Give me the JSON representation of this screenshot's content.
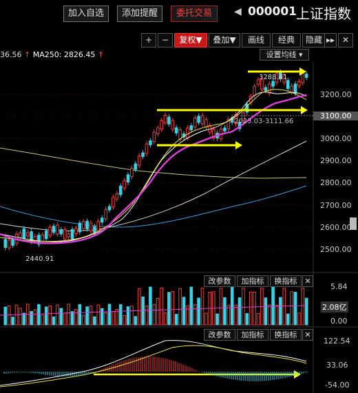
{
  "header": {
    "add_watchlist": "加入自选",
    "add_alert": "添加提醒",
    "trade": "委托交易",
    "code": "000001",
    "name": "上证指数"
  },
  "toolbar": {
    "plus": "+",
    "minus": "−",
    "adjust": "复权▼",
    "overlay": "叠加▼",
    "draw": "画线",
    "classic": "经典",
    "hide": "隐藏",
    "more": "▸▸",
    "close": "✕"
  },
  "ma_line": {
    "prefix": "36.56",
    "ma250_label": "MA250: 2826.45",
    "arrow1": "↑",
    "arrow2": "↑"
  },
  "set_ma": "设置均线",
  "main_axis": {
    "ticks": [
      "3200.00",
      "3100.00",
      "3000.00",
      "2900.00",
      "2800.00",
      "2700.00",
      "2600.00",
      "2500.00"
    ],
    "current_label": "3100.00"
  },
  "annotations": {
    "high": "3288.41",
    "low": "2440.91",
    "mark": "2023.03-3111.66"
  },
  "volume_panel": {
    "buttons": [
      "改参数",
      "加指标",
      "换指标"
    ],
    "close": "✕",
    "axis_top": "5.84",
    "axis_mid": "2.08亿",
    "axis_bottom": "0.00"
  },
  "macd_panel": {
    "buttons": [
      "改参数",
      "加指标",
      "换指标"
    ],
    "close": "✕",
    "axis_top": "122.54",
    "axis_mid": "33.06",
    "axis_bottom": "-54.00"
  },
  "colors": {
    "up": "#ff3b3b",
    "down": "#36d3e6",
    "ma_white": "#ffffff",
    "ma_yellow": "#f0e040",
    "ma_magenta": "#e040e0",
    "ma_green": "#70d070",
    "ma_blue": "#40a0e0",
    "ma250": "#c8c87a",
    "highlight": "#ffff00"
  }
}
